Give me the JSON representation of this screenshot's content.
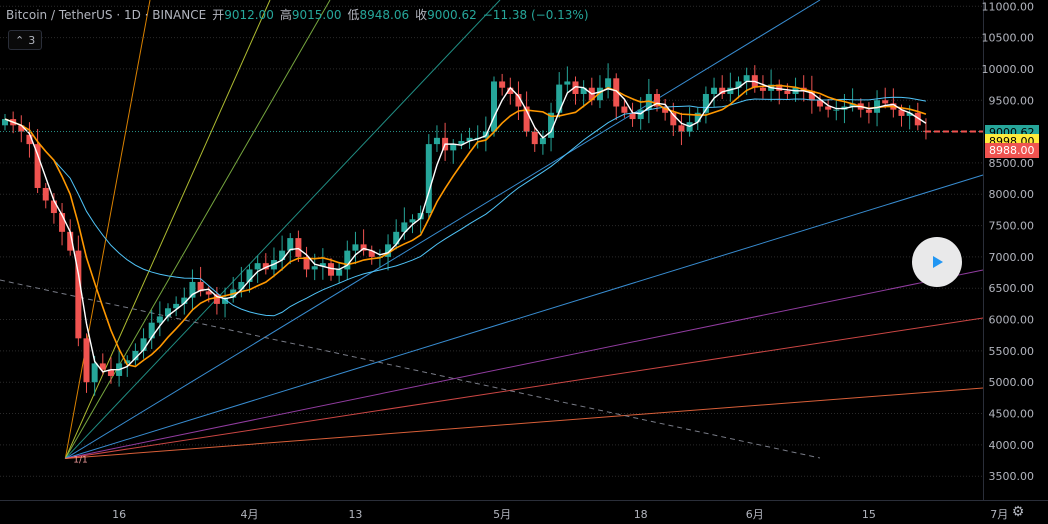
{
  "header": {
    "symbol": "Bitcoin / TetherUS · 1D · BINANCE",
    "open_label": "开",
    "open": "9012.00",
    "high_label": "高",
    "high": "9015.00",
    "low_label": "低",
    "low": "8948.06",
    "close_label": "收",
    "close": "9000.62",
    "change": "−11.38 (−0.13%)"
  },
  "indicator_toggle": {
    "count": "3",
    "icon": "chevron-up-icon"
  },
  "price_tags": [
    {
      "label": "9000.62",
      "bg": "#26a69a",
      "fg": "#000000",
      "value": 9000.62
    },
    {
      "label": "8998.00",
      "bg": "#ffeb3b",
      "fg": "#000000",
      "value": 8998
    },
    {
      "label": "8988.00",
      "bg": "#ef5350",
      "fg": "#ffffff",
      "value": 8988
    }
  ],
  "colors": {
    "up": "#26a69a",
    "down": "#ef5350",
    "grid": "#1c1c1c",
    "ma_short": "#ffffff",
    "ma_mid": "#ff9800",
    "ma_long": "#4fc3f7",
    "axis_text": "#b2b5be"
  },
  "chart_data": {
    "type": "candlestick",
    "title": "",
    "yticks": [
      3500,
      4000,
      4500,
      5000,
      5500,
      6000,
      6500,
      7000,
      7500,
      8000,
      8500,
      9000,
      9500,
      10000,
      10500,
      11000
    ],
    "ytick_labels": [
      "3500.00",
      "4000.00",
      "4500.00",
      "5000.00",
      "5500.00",
      "6000.00",
      "6500.00",
      "7000.00",
      "7500.00",
      "8000.00",
      "8500.00",
      "9000.00",
      "9500.00",
      "10000.00",
      "10500.00",
      "11000.00"
    ],
    "ylim": [
      3200,
      11100
    ],
    "xticks": [
      {
        "label": "16",
        "day": 14
      },
      {
        "label": "4月",
        "day": 30
      },
      {
        "label": "13",
        "day": 43
      },
      {
        "label": "5月",
        "day": 61
      },
      {
        "label": "18",
        "day": 78
      },
      {
        "label": "6月",
        "day": 92
      },
      {
        "label": "15",
        "day": 106
      },
      {
        "label": "7月",
        "day": 122
      }
    ],
    "candles_close": [
      9200,
      9100,
      9000,
      8800,
      8100,
      7900,
      7700,
      7400,
      7100,
      5700,
      5000,
      5300,
      5200,
      5100,
      5300,
      5350,
      5500,
      5700,
      5950,
      6050,
      6180,
      6250,
      6350,
      6600,
      6450,
      6400,
      6250,
      6350,
      6480,
      6600,
      6800,
      6900,
      6800,
      6950,
      7100,
      7300,
      7000,
      6800,
      6850,
      6900,
      6700,
      6800,
      7100,
      7200,
      7100,
      7000,
      7000,
      7200,
      7400,
      7550,
      7600,
      7700,
      8800,
      8900,
      8700,
      8800,
      8850,
      8900,
      8900,
      9000,
      9800,
      9700,
      9600,
      9400,
      9000,
      8800,
      8900,
      9300,
      9750,
      9800,
      9600,
      9700,
      9500,
      9700,
      9850,
      9400,
      9300,
      9200,
      9350,
      9600,
      9400,
      9300,
      9100,
      9000,
      9150,
      9300,
      9600,
      9700,
      9600,
      9700,
      9800,
      9900,
      9700,
      9650,
      9750,
      9650,
      9600,
      9700,
      9650,
      9500,
      9400,
      9350,
      9350,
      9400,
      9450,
      9350,
      9300,
      9500,
      9450,
      9350,
      9250,
      9300,
      9100,
      9000
    ],
    "candles_open": [
      9100,
      9200,
      9100,
      8950,
      8800,
      8100,
      7900,
      7700,
      7400,
      7100,
      5700,
      5000,
      5300,
      5200,
      5100,
      5300,
      5350,
      5500,
      5700,
      5950,
      6050,
      6180,
      6250,
      6350,
      6600,
      6450,
      6400,
      6250,
      6350,
      6480,
      6600,
      6800,
      6900,
      6800,
      6950,
      7100,
      7300,
      7000,
      6800,
      6850,
      6900,
      6700,
      6800,
      7100,
      7200,
      7100,
      7000,
      7000,
      7200,
      7400,
      7550,
      7600,
      7700,
      8800,
      8900,
      8700,
      8800,
      8850,
      8900,
      8900,
      9000,
      9800,
      9700,
      9600,
      9400,
      9000,
      8800,
      8900,
      9300,
      9750,
      9800,
      9600,
      9700,
      9500,
      9700,
      9850,
      9400,
      9300,
      9200,
      9350,
      9600,
      9400,
      9300,
      9100,
      9000,
      9150,
      9300,
      9600,
      9700,
      9600,
      9700,
      9800,
      9900,
      9700,
      9650,
      9750,
      9650,
      9600,
      9700,
      9650,
      9500,
      9400,
      9350,
      9350,
      9400,
      9450,
      9350,
      9300,
      9500,
      9450,
      9350,
      9250,
      9300,
      9012
    ]
  },
  "gann_origin_price": 3782,
  "fan_label": "1/1",
  "settings_icon": "gear-icon",
  "play_icon": "play-icon"
}
